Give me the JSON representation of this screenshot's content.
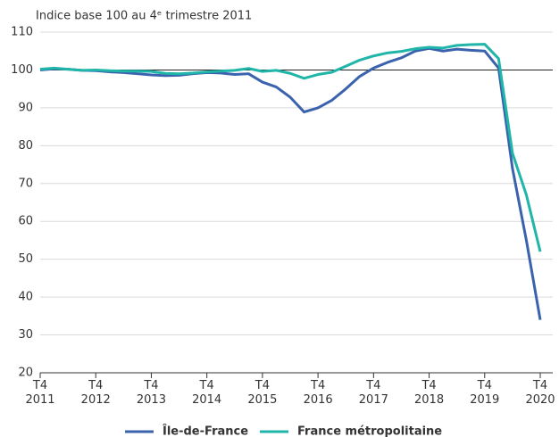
{
  "chart_data": {
    "type": "line",
    "title": "Indice base 100 au 4ᵉ trimestre 2011",
    "categories": [
      "T4 2011",
      null,
      null,
      null,
      "T4 2012",
      null,
      null,
      null,
      "T4 2013",
      null,
      null,
      null,
      "T4 2014",
      null,
      null,
      null,
      "T4 2015",
      null,
      null,
      null,
      "T4 2016",
      null,
      null,
      null,
      "T4 2017",
      null,
      null,
      null,
      "T4 2018",
      null,
      null,
      null,
      "T4 2019",
      null,
      null,
      null,
      "T4 2020"
    ],
    "series": [
      {
        "name": "Île-de-France",
        "color": "#3a62ad",
        "values": [
          100,
          100.3,
          100.2,
          99.9,
          99.8,
          99.5,
          99.3,
          99.0,
          98.7,
          98.5,
          98.6,
          99.0,
          99.3,
          99.2,
          98.8,
          99.0,
          96.8,
          95.5,
          92.8,
          88.9,
          90,
          92,
          95,
          98.3,
          100.5,
          102,
          103.2,
          105,
          105.7,
          105,
          105.5,
          105.2,
          105,
          100.5,
          74,
          55,
          34
        ]
      },
      {
        "name": "France métropolitaine",
        "color": "#1fb5a8",
        "values": [
          100.2,
          100.5,
          100.2,
          99.9,
          100.0,
          99.8,
          99.7,
          99.7,
          99.6,
          99.1,
          99.0,
          99.2,
          99.5,
          99.7,
          99.9,
          100.4,
          99.6,
          99.9,
          99.1,
          97.8,
          98.8,
          99.4,
          101,
          102.6,
          103.7,
          104.5,
          104.9,
          105.6,
          106,
          105.8,
          106.5,
          106.7,
          106.8,
          103,
          78,
          67,
          52
        ]
      }
    ],
    "ylim": [
      20,
      110
    ],
    "yticks": [
      20,
      30,
      40,
      50,
      60,
      70,
      80,
      90,
      100,
      110
    ],
    "reference_line": 100,
    "grid": true,
    "legend": "bottom"
  }
}
